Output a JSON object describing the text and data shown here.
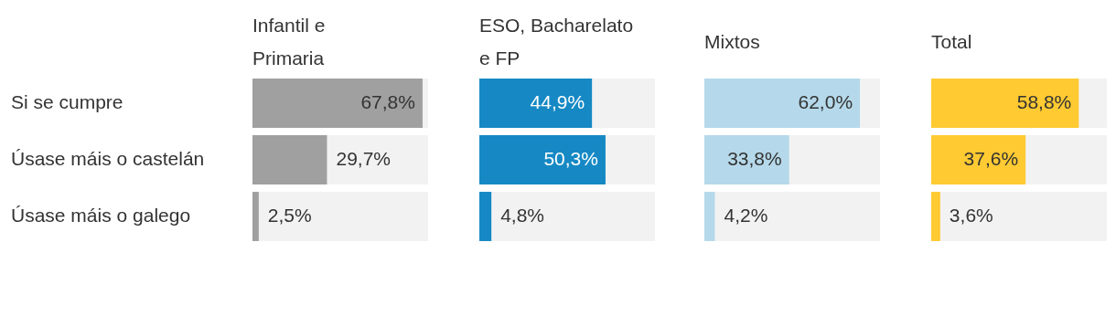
{
  "chart_data": [
    {
      "type": "bar",
      "orientation": "horizontal",
      "title": "Infantil e Primaria",
      "categories": [
        "Si se cumpre",
        "Úsase máis o castelán",
        "Úsase máis o galego"
      ],
      "values": [
        67.8,
        29.7,
        2.5
      ],
      "value_labels": [
        "67,8%",
        "29,7%",
        "2,5%"
      ],
      "color": "#a0a0a0",
      "xlim": [
        0,
        70
      ],
      "tick_labels": "y"
    },
    {
      "type": "bar",
      "orientation": "horizontal",
      "title": "ESO, Bacharelato e FP",
      "categories": [
        null,
        null,
        null
      ],
      "values": [
        44.9,
        50.3,
        4.8
      ],
      "value_labels": [
        "44,9%",
        "50,3%",
        "4,8%"
      ],
      "color": "#1689c4",
      "xlim": [
        0,
        70
      ],
      "tick_labels": false
    },
    {
      "type": "bar",
      "orientation": "horizontal",
      "title": "Mixtos",
      "categories": [
        null,
        null,
        null
      ],
      "values": [
        62.0,
        33.8,
        4.2
      ],
      "value_labels": [
        "62,0%",
        "33,8%",
        "4,2%"
      ],
      "color": "#b5d9ea",
      "xlim": [
        0,
        70
      ],
      "tick_labels": false
    },
    {
      "type": "bar",
      "orientation": "horizontal",
      "title": "Total",
      "categories": [
        null,
        null,
        null
      ],
      "values": [
        58.8,
        37.6,
        3.6
      ],
      "value_labels": [
        "58,8%",
        "37,6%",
        "3,6%"
      ],
      "color": "#ffca32",
      "xlim": [
        0,
        70
      ],
      "tick_labels": false
    }
  ]
}
